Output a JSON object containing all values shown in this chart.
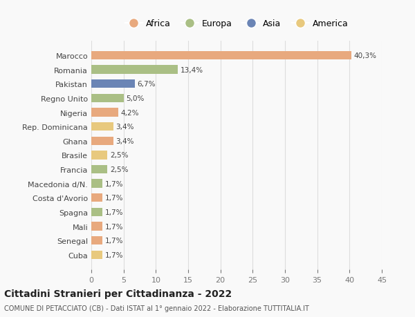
{
  "countries": [
    "Marocco",
    "Romania",
    "Pakistan",
    "Regno Unito",
    "Nigeria",
    "Rep. Dominicana",
    "Ghana",
    "Brasile",
    "Francia",
    "Macedonia d/N.",
    "Costa d'Avorio",
    "Spagna",
    "Mali",
    "Senegal",
    "Cuba"
  ],
  "values": [
    40.3,
    13.4,
    6.7,
    5.0,
    4.2,
    3.4,
    3.4,
    2.5,
    2.5,
    1.7,
    1.7,
    1.7,
    1.7,
    1.7,
    1.7
  ],
  "labels": [
    "40,3%",
    "13,4%",
    "6,7%",
    "5,0%",
    "4,2%",
    "3,4%",
    "3,4%",
    "2,5%",
    "2,5%",
    "1,7%",
    "1,7%",
    "1,7%",
    "1,7%",
    "1,7%",
    "1,7%"
  ],
  "continents": [
    "Africa",
    "Europa",
    "Asia",
    "Europa",
    "Africa",
    "America",
    "Africa",
    "America",
    "Europa",
    "Europa",
    "Africa",
    "Europa",
    "Africa",
    "Africa",
    "America"
  ],
  "colors": {
    "Africa": "#E8A97E",
    "Europa": "#AABF85",
    "Asia": "#6B85B5",
    "America": "#E8C97E"
  },
  "legend_order": [
    "Africa",
    "Europa",
    "Asia",
    "America"
  ],
  "title": "Cittadini Stranieri per Cittadinanza - 2022",
  "subtitle": "COMUNE DI PETACCIATO (CB) - Dati ISTAT al 1° gennaio 2022 - Elaborazione TUTTITALIA.IT",
  "xlim": [
    0,
    45
  ],
  "xticks": [
    0,
    5,
    10,
    15,
    20,
    25,
    30,
    35,
    40,
    45
  ],
  "background_color": "#f9f9f9",
  "bar_height": 0.6
}
